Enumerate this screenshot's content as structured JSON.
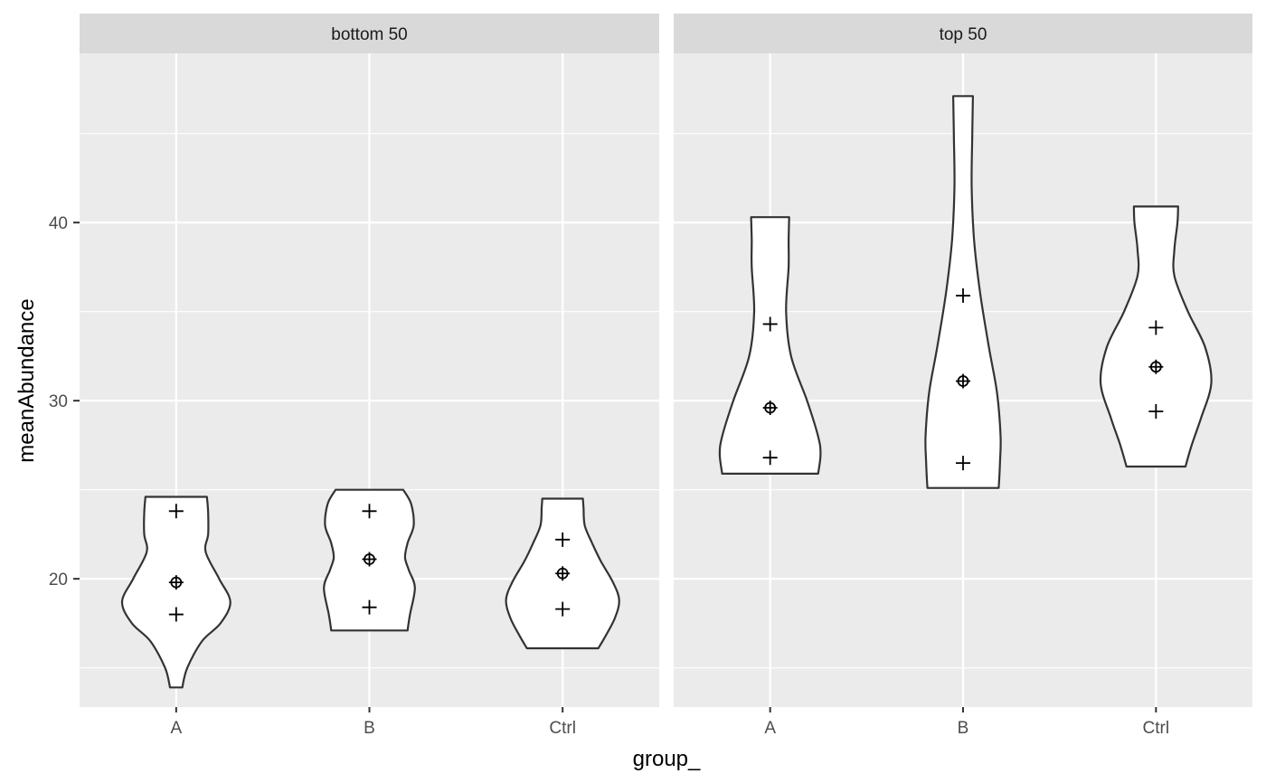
{
  "chart_data": {
    "type": "violin",
    "xlabel": "group_",
    "ylabel": "meanAbundance",
    "ylim": [
      12.8,
      49.5
    ],
    "yticks": [
      20,
      30,
      40
    ],
    "categories": [
      "A",
      "B",
      "Ctrl"
    ],
    "grid": true,
    "facets": [
      {
        "label": "bottom 50",
        "violins": [
          {
            "group": "A",
            "min": 13.9,
            "max": 24.6,
            "q25": 18.0,
            "median": 19.8,
            "q75": 23.8,
            "width_profile": [
              [
                13.9,
                0.1
              ],
              [
                15.0,
                0.18
              ],
              [
                16.5,
                0.42
              ],
              [
                17.5,
                0.72
              ],
              [
                18.7,
                0.88
              ],
              [
                20.0,
                0.7
              ],
              [
                21.5,
                0.48
              ],
              [
                22.5,
                0.52
              ],
              [
                23.7,
                0.52
              ],
              [
                24.6,
                0.5
              ]
            ]
          },
          {
            "group": "B",
            "min": 17.1,
            "max": 25.0,
            "q25": 18.4,
            "median": 21.1,
            "q75": 23.8,
            "width_profile": [
              [
                17.1,
                0.62
              ],
              [
                18.0,
                0.66
              ],
              [
                19.5,
                0.74
              ],
              [
                20.5,
                0.64
              ],
              [
                21.2,
                0.58
              ],
              [
                22.0,
                0.62
              ],
              [
                23.0,
                0.72
              ],
              [
                24.2,
                0.68
              ],
              [
                25.0,
                0.55
              ]
            ]
          },
          {
            "group": "Ctrl",
            "min": 16.1,
            "max": 24.5,
            "q25": 18.3,
            "median": 20.3,
            "q75": 22.2,
            "width_profile": [
              [
                16.1,
                0.58
              ],
              [
                16.8,
                0.7
              ],
              [
                17.8,
                0.85
              ],
              [
                18.8,
                0.92
              ],
              [
                19.8,
                0.82
              ],
              [
                21.0,
                0.62
              ],
              [
                22.0,
                0.48
              ],
              [
                23.0,
                0.36
              ],
              [
                24.0,
                0.34
              ],
              [
                24.5,
                0.33
              ]
            ]
          }
        ]
      },
      {
        "label": "top 50",
        "violins": [
          {
            "group": "A",
            "min": 25.9,
            "max": 40.3,
            "q25": 26.8,
            "median": 29.6,
            "q75": 34.3,
            "width_profile": [
              [
                25.9,
                0.78
              ],
              [
                27.0,
                0.82
              ],
              [
                28.0,
                0.78
              ],
              [
                30.0,
                0.6
              ],
              [
                32.5,
                0.34
              ],
              [
                35.0,
                0.26
              ],
              [
                37.5,
                0.3
              ],
              [
                39.0,
                0.3
              ],
              [
                40.3,
                0.31
              ]
            ]
          },
          {
            "group": "B",
            "min": 25.1,
            "max": 47.1,
            "q25": 26.5,
            "median": 31.1,
            "q75": 35.9,
            "width_profile": [
              [
                25.1,
                0.58
              ],
              [
                26.5,
                0.6
              ],
              [
                28.0,
                0.61
              ],
              [
                30.5,
                0.55
              ],
              [
                33.0,
                0.42
              ],
              [
                36.0,
                0.28
              ],
              [
                39.0,
                0.18
              ],
              [
                42.0,
                0.14
              ],
              [
                45.0,
                0.15
              ],
              [
                47.1,
                0.16
              ]
            ]
          },
          {
            "group": "Ctrl",
            "min": 26.3,
            "max": 40.9,
            "q25": 29.4,
            "median": 31.9,
            "q75": 34.1,
            "width_profile": [
              [
                26.3,
                0.48
              ],
              [
                27.5,
                0.58
              ],
              [
                29.0,
                0.73
              ],
              [
                31.0,
                0.9
              ],
              [
                33.0,
                0.8
              ],
              [
                35.0,
                0.52
              ],
              [
                37.0,
                0.3
              ],
              [
                38.5,
                0.3
              ],
              [
                40.0,
                0.35
              ],
              [
                40.9,
                0.36
              ]
            ]
          }
        ]
      }
    ]
  }
}
